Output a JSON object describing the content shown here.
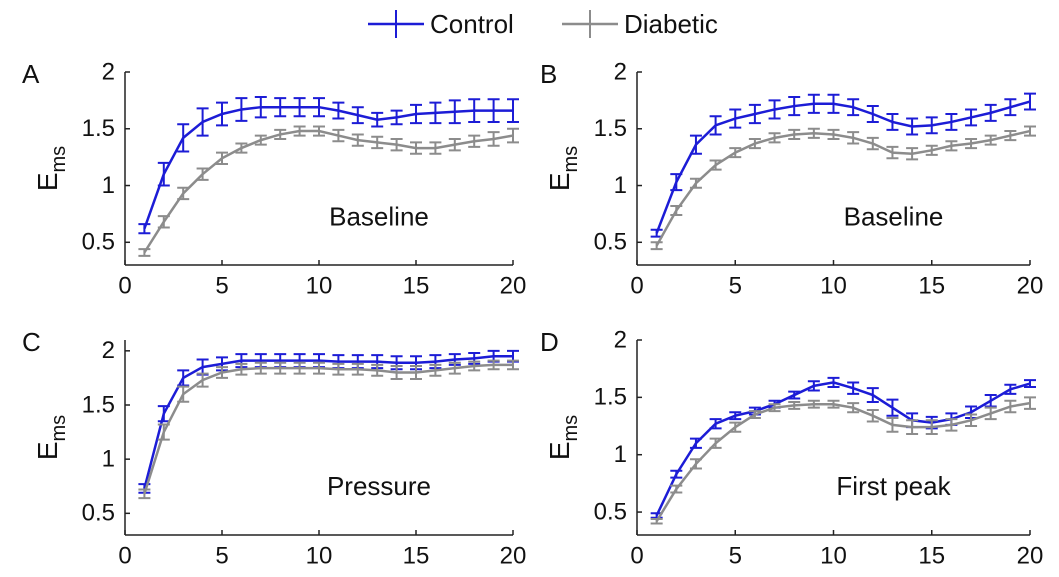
{
  "chart_data": [
    {
      "type": "line",
      "panel_label": "A",
      "annotation": "Baseline",
      "ylabel": "E",
      "ylabel_subscript": "ms",
      "x": [
        1,
        2,
        3,
        4,
        5,
        6,
        7,
        8,
        9,
        10,
        11,
        12,
        13,
        14,
        15,
        16,
        17,
        18,
        19,
        20
      ],
      "xlim": [
        0,
        20
      ],
      "xticks": [
        0,
        5,
        10,
        15,
        20
      ],
      "ylim": [
        0.3,
        2
      ],
      "yticks": [
        0.5,
        1,
        1.5,
        2
      ],
      "series": [
        {
          "name": "Control",
          "color": "#1c1cd6",
          "values": [
            0.62,
            1.1,
            1.42,
            1.56,
            1.63,
            1.67,
            1.69,
            1.69,
            1.69,
            1.69,
            1.66,
            1.62,
            1.58,
            1.6,
            1.63,
            1.64,
            1.65,
            1.66,
            1.66,
            1.66
          ],
          "errors": [
            0.04,
            0.1,
            0.12,
            0.12,
            0.1,
            0.1,
            0.09,
            0.08,
            0.08,
            0.08,
            0.07,
            0.07,
            0.06,
            0.06,
            0.08,
            0.09,
            0.1,
            0.1,
            0.1,
            0.1
          ]
        },
        {
          "name": "Diabetic",
          "color": "#8c8c8c",
          "values": [
            0.41,
            0.68,
            0.93,
            1.1,
            1.24,
            1.33,
            1.4,
            1.45,
            1.48,
            1.48,
            1.44,
            1.4,
            1.38,
            1.36,
            1.33,
            1.33,
            1.36,
            1.39,
            1.41,
            1.44
          ],
          "errors": [
            0.03,
            0.05,
            0.05,
            0.05,
            0.05,
            0.04,
            0.04,
            0.04,
            0.04,
            0.04,
            0.05,
            0.05,
            0.05,
            0.05,
            0.05,
            0.05,
            0.05,
            0.05,
            0.06,
            0.06
          ]
        }
      ]
    },
    {
      "type": "line",
      "panel_label": "B",
      "annotation": "Baseline",
      "ylabel": "E",
      "ylabel_subscript": "ms",
      "x": [
        1,
        2,
        3,
        4,
        5,
        6,
        7,
        8,
        9,
        10,
        11,
        12,
        13,
        14,
        15,
        16,
        17,
        18,
        19,
        20
      ],
      "xlim": [
        0,
        20
      ],
      "xticks": [
        0,
        5,
        10,
        15,
        20
      ],
      "ylim": [
        0.3,
        2
      ],
      "yticks": [
        0.5,
        1,
        1.5,
        2
      ],
      "series": [
        {
          "name": "Control",
          "color": "#1c1cd6",
          "values": [
            0.58,
            1.03,
            1.36,
            1.53,
            1.59,
            1.63,
            1.67,
            1.7,
            1.72,
            1.72,
            1.69,
            1.63,
            1.56,
            1.52,
            1.53,
            1.56,
            1.6,
            1.64,
            1.69,
            1.74
          ],
          "errors": [
            0.03,
            0.07,
            0.08,
            0.08,
            0.08,
            0.08,
            0.08,
            0.08,
            0.08,
            0.08,
            0.07,
            0.07,
            0.07,
            0.07,
            0.07,
            0.07,
            0.07,
            0.07,
            0.07,
            0.07
          ]
        },
        {
          "name": "Diabetic",
          "color": "#8c8c8c",
          "values": [
            0.47,
            0.78,
            1.02,
            1.18,
            1.29,
            1.37,
            1.42,
            1.45,
            1.46,
            1.45,
            1.42,
            1.37,
            1.29,
            1.28,
            1.31,
            1.35,
            1.37,
            1.4,
            1.44,
            1.48
          ],
          "errors": [
            0.03,
            0.04,
            0.04,
            0.04,
            0.04,
            0.04,
            0.04,
            0.04,
            0.04,
            0.04,
            0.05,
            0.05,
            0.05,
            0.05,
            0.04,
            0.04,
            0.04,
            0.04,
            0.04,
            0.04
          ]
        }
      ]
    },
    {
      "type": "line",
      "panel_label": "C",
      "annotation": "Pressure",
      "ylabel": "E",
      "ylabel_subscript": "ms",
      "x": [
        1,
        2,
        3,
        4,
        5,
        6,
        7,
        8,
        9,
        10,
        11,
        12,
        13,
        14,
        15,
        16,
        17,
        18,
        19,
        20
      ],
      "xlim": [
        0,
        20
      ],
      "xticks": [
        0,
        5,
        10,
        15,
        20
      ],
      "ylim": [
        0.3,
        2.1
      ],
      "yticks": [
        0.5,
        1,
        1.5,
        2
      ],
      "series": [
        {
          "name": "Control",
          "color": "#1c1cd6",
          "values": [
            0.73,
            1.42,
            1.75,
            1.85,
            1.88,
            1.91,
            1.91,
            1.91,
            1.91,
            1.91,
            1.9,
            1.9,
            1.9,
            1.89,
            1.89,
            1.9,
            1.92,
            1.93,
            1.95,
            1.95
          ],
          "errors": [
            0.04,
            0.07,
            0.07,
            0.07,
            0.06,
            0.06,
            0.06,
            0.06,
            0.06,
            0.06,
            0.06,
            0.06,
            0.06,
            0.06,
            0.06,
            0.06,
            0.05,
            0.05,
            0.05,
            0.05
          ]
        },
        {
          "name": "Diabetic",
          "color": "#8c8c8c",
          "values": [
            0.68,
            1.25,
            1.6,
            1.73,
            1.8,
            1.83,
            1.84,
            1.84,
            1.84,
            1.84,
            1.83,
            1.83,
            1.82,
            1.8,
            1.8,
            1.82,
            1.84,
            1.86,
            1.87,
            1.87
          ],
          "errors": [
            0.04,
            0.07,
            0.07,
            0.06,
            0.05,
            0.05,
            0.05,
            0.05,
            0.05,
            0.05,
            0.05,
            0.05,
            0.05,
            0.06,
            0.06,
            0.05,
            0.05,
            0.04,
            0.04,
            0.04
          ]
        }
      ]
    },
    {
      "type": "line",
      "panel_label": "D",
      "annotation": "First peak",
      "ylabel": "E",
      "ylabel_subscript": "ms",
      "x": [
        1,
        2,
        3,
        4,
        5,
        6,
        7,
        8,
        9,
        10,
        11,
        12,
        13,
        14,
        15,
        16,
        17,
        18,
        19,
        20
      ],
      "xlim": [
        0,
        20
      ],
      "xticks": [
        0,
        5,
        10,
        15,
        20
      ],
      "ylim": [
        0.3,
        2
      ],
      "yticks": [
        0.5,
        1,
        1.5,
        2
      ],
      "series": [
        {
          "name": "Control",
          "color": "#1c1cd6",
          "values": [
            0.47,
            0.83,
            1.1,
            1.27,
            1.34,
            1.38,
            1.44,
            1.52,
            1.6,
            1.63,
            1.58,
            1.52,
            1.41,
            1.3,
            1.28,
            1.31,
            1.37,
            1.47,
            1.57,
            1.62
          ],
          "errors": [
            0.02,
            0.03,
            0.04,
            0.04,
            0.03,
            0.03,
            0.03,
            0.03,
            0.04,
            0.04,
            0.05,
            0.06,
            0.07,
            0.06,
            0.05,
            0.05,
            0.05,
            0.05,
            0.04,
            0.03
          ]
        },
        {
          "name": "Diabetic",
          "color": "#8c8c8c",
          "values": [
            0.42,
            0.7,
            0.92,
            1.1,
            1.24,
            1.35,
            1.41,
            1.43,
            1.44,
            1.44,
            1.41,
            1.34,
            1.26,
            1.24,
            1.24,
            1.26,
            1.3,
            1.36,
            1.42,
            1.45
          ],
          "errors": [
            0.02,
            0.03,
            0.04,
            0.04,
            0.04,
            0.03,
            0.03,
            0.03,
            0.03,
            0.03,
            0.04,
            0.05,
            0.06,
            0.06,
            0.06,
            0.05,
            0.05,
            0.05,
            0.05,
            0.05
          ]
        }
      ]
    }
  ]
}
